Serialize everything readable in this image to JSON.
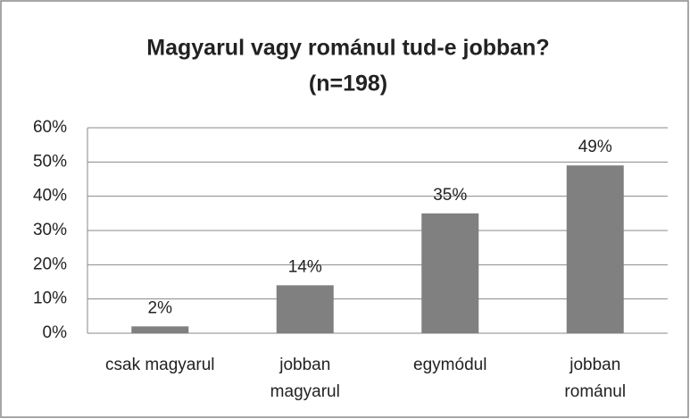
{
  "chart_data": {
    "type": "bar",
    "title": "Magyarul vagy románul tud-e jobban?",
    "subtitle": "(n=198)",
    "categories": [
      [
        "csak magyarul"
      ],
      [
        "jobban",
        "magyarul"
      ],
      [
        "egymódul"
      ],
      [
        "jobban",
        "románul"
      ]
    ],
    "values": [
      2,
      14,
      35,
      49
    ],
    "value_labels": [
      "2%",
      "14%",
      "35%",
      "49%"
    ],
    "color": "#808080",
    "ylim": [
      0,
      60
    ],
    "yticks": [
      {
        "value": 0,
        "label": "0%"
      },
      {
        "value": 10,
        "label": "10%"
      },
      {
        "value": 20,
        "label": "20%"
      },
      {
        "value": 30,
        "label": "30%"
      },
      {
        "value": 40,
        "label": "40%"
      },
      {
        "value": 50,
        "label": "50%"
      },
      {
        "value": 60,
        "label": "60%"
      }
    ],
    "grid": true
  }
}
